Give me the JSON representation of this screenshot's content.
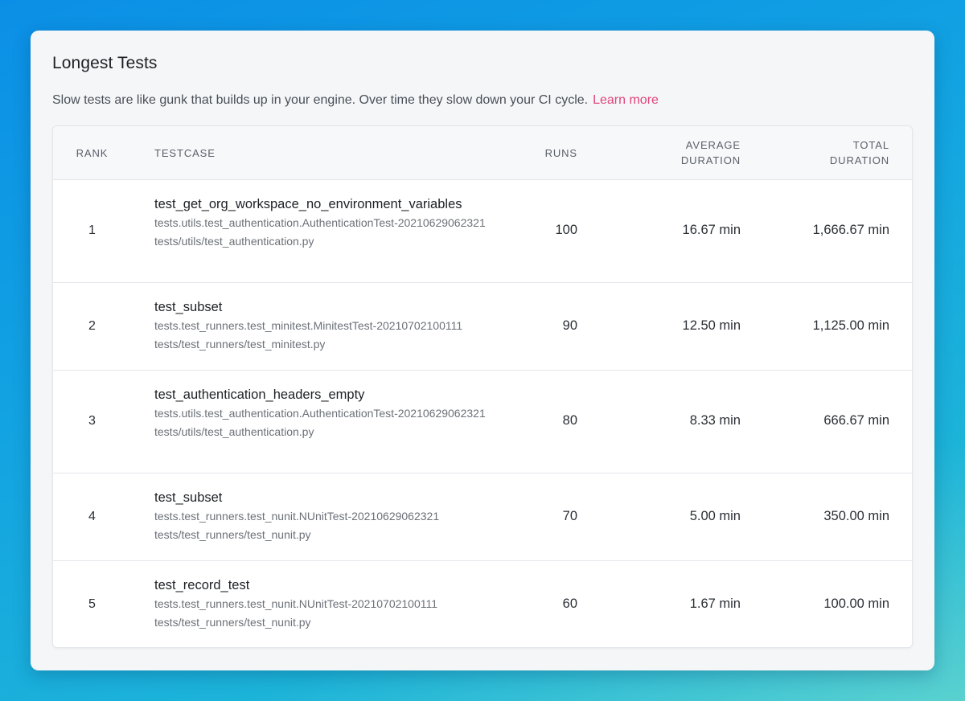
{
  "card": {
    "title": "Longest Tests",
    "description": "Slow tests are like gunk that builds up in your engine. Over time they slow down your CI cycle.",
    "learn_more": "Learn more"
  },
  "table": {
    "headers": {
      "rank": "RANK",
      "testcase": "TESTCASE",
      "runs": "RUNS",
      "avg_line1": "AVERAGE",
      "avg_line2": "DURATION",
      "total_line1": "TOTAL",
      "total_line2": "DURATION"
    },
    "rows": [
      {
        "rank": "1",
        "name": "test_get_org_workspace_no_environment_variables",
        "id": "tests.utils.test_authentication.AuthenticationTest-20210629062321",
        "path": "tests/utils/test_authentication.py",
        "runs": "100",
        "avg": "16.67 min",
        "total": "1,666.67 min"
      },
      {
        "rank": "2",
        "name": "test_subset",
        "id": "tests.test_runners.test_minitest.MinitestTest-20210702100111",
        "path": "tests/test_runners/test_minitest.py",
        "runs": "90",
        "avg": "12.50 min",
        "total": "1,125.00 min"
      },
      {
        "rank": "3",
        "name": "test_authentication_headers_empty",
        "id": "tests.utils.test_authentication.AuthenticationTest-20210629062321",
        "path": "tests/utils/test_authentication.py",
        "runs": "80",
        "avg": "8.33 min",
        "total": "666.67 min"
      },
      {
        "rank": "4",
        "name": "test_subset",
        "id": "tests.test_runners.test_nunit.NUnitTest-20210629062321",
        "path": "tests/test_runners/test_nunit.py",
        "runs": "70",
        "avg": "5.00 min",
        "total": "350.00 min"
      },
      {
        "rank": "5",
        "name": "test_record_test",
        "id": "tests.test_runners.test_nunit.NUnitTest-20210702100111",
        "path": "tests/test_runners/test_nunit.py",
        "runs": "60",
        "avg": "1.67 min",
        "total": "100.00 min"
      }
    ]
  }
}
